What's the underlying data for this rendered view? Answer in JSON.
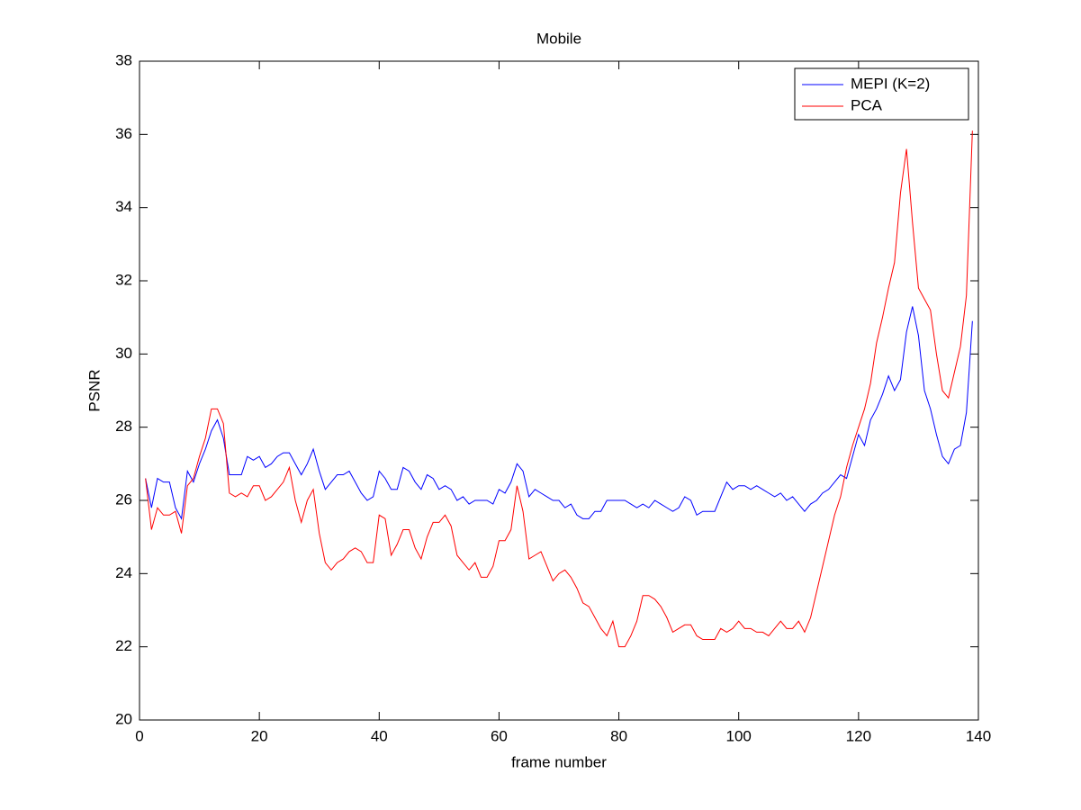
{
  "chart_data": {
    "type": "line",
    "title": "Mobile",
    "x_label": "frame number",
    "y_label": "PSNR",
    "x": [
      1,
      2,
      3,
      4,
      5,
      6,
      7,
      8,
      9,
      10,
      11,
      12,
      13,
      14,
      15,
      16,
      17,
      18,
      19,
      20,
      21,
      22,
      23,
      24,
      25,
      26,
      27,
      28,
      29,
      30,
      31,
      32,
      33,
      34,
      35,
      36,
      37,
      38,
      39,
      40,
      41,
      42,
      43,
      44,
      45,
      46,
      47,
      48,
      49,
      50,
      51,
      52,
      53,
      54,
      55,
      56,
      57,
      58,
      59,
      60,
      61,
      62,
      63,
      64,
      65,
      66,
      67,
      68,
      69,
      70,
      71,
      72,
      73,
      74,
      75,
      76,
      77,
      78,
      79,
      80,
      81,
      82,
      83,
      84,
      85,
      86,
      87,
      88,
      89,
      90,
      91,
      92,
      93,
      94,
      95,
      96,
      97,
      98,
      99,
      100,
      101,
      102,
      103,
      104,
      105,
      106,
      107,
      108,
      109,
      110,
      111,
      112,
      113,
      114,
      115,
      116,
      117,
      118,
      119,
      120,
      121,
      122,
      123,
      124,
      125,
      126,
      127,
      128,
      129,
      130,
      131,
      132,
      133,
      134,
      135,
      136,
      137,
      138,
      139
    ],
    "series": [
      {
        "name": "MEPI (K=2)",
        "color": "#0000ff",
        "values": [
          26.6,
          25.8,
          26.6,
          26.5,
          26.5,
          25.8,
          25.5,
          26.8,
          26.5,
          27.0,
          27.4,
          27.9,
          28.2,
          27.7,
          26.7,
          26.7,
          26.7,
          27.2,
          27.1,
          27.2,
          26.9,
          27.0,
          27.2,
          27.3,
          27.3,
          27.0,
          26.7,
          27.0,
          27.4,
          26.8,
          26.3,
          26.5,
          26.7,
          26.7,
          26.8,
          26.5,
          26.2,
          26.0,
          26.1,
          26.8,
          26.6,
          26.3,
          26.3,
          26.9,
          26.8,
          26.5,
          26.3,
          26.7,
          26.6,
          26.3,
          26.4,
          26.3,
          26.0,
          26.1,
          25.9,
          26.0,
          26.0,
          26.0,
          25.9,
          26.3,
          26.2,
          26.5,
          27.0,
          26.8,
          26.1,
          26.3,
          26.2,
          26.1,
          26.0,
          26.0,
          25.8,
          25.9,
          25.6,
          25.5,
          25.5,
          25.7,
          25.7,
          26.0,
          26.0,
          26.0,
          26.0,
          25.9,
          25.8,
          25.9,
          25.8,
          26.0,
          25.9,
          25.8,
          25.7,
          25.8,
          26.1,
          26.0,
          25.6,
          25.7,
          25.7,
          25.7,
          26.1,
          26.5,
          26.3,
          26.4,
          26.4,
          26.3,
          26.4,
          26.3,
          26.2,
          26.1,
          26.2,
          26.0,
          26.1,
          25.9,
          25.7,
          25.9,
          26.0,
          26.2,
          26.3,
          26.5,
          26.7,
          26.6,
          27.2,
          27.8,
          27.5,
          28.2,
          28.5,
          28.9,
          29.4,
          29.0,
          29.3,
          30.6,
          31.3,
          30.5,
          29.0,
          28.5,
          27.8,
          27.2,
          27.0,
          27.4,
          27.5,
          28.4,
          30.9
        ]
      },
      {
        "name": "PCA",
        "color": "#ff0000",
        "values": [
          26.6,
          25.2,
          25.8,
          25.6,
          25.6,
          25.7,
          25.1,
          26.4,
          26.6,
          27.2,
          27.7,
          28.5,
          28.5,
          28.1,
          26.2,
          26.1,
          26.2,
          26.1,
          26.4,
          26.4,
          26.0,
          26.1,
          26.3,
          26.5,
          26.9,
          26.0,
          25.4,
          26.0,
          26.3,
          25.1,
          24.3,
          24.1,
          24.3,
          24.4,
          24.6,
          24.7,
          24.6,
          24.3,
          24.3,
          25.6,
          25.5,
          24.5,
          24.8,
          25.2,
          25.2,
          24.7,
          24.4,
          25.0,
          25.4,
          25.4,
          25.6,
          25.3,
          24.5,
          24.3,
          24.1,
          24.3,
          23.9,
          23.9,
          24.2,
          24.9,
          24.9,
          25.2,
          26.4,
          25.7,
          24.4,
          24.5,
          24.6,
          24.2,
          23.8,
          24.0,
          24.1,
          23.9,
          23.6,
          23.2,
          23.1,
          22.8,
          22.5,
          22.3,
          22.7,
          22.0,
          22.0,
          22.3,
          22.7,
          23.4,
          23.4,
          23.3,
          23.1,
          22.8,
          22.4,
          22.5,
          22.6,
          22.6,
          22.3,
          22.2,
          22.2,
          22.2,
          22.5,
          22.4,
          22.5,
          22.7,
          22.5,
          22.5,
          22.4,
          22.4,
          22.3,
          22.5,
          22.7,
          22.5,
          22.5,
          22.7,
          22.4,
          22.8,
          23.5,
          24.2,
          24.9,
          25.6,
          26.1,
          26.9,
          27.5,
          28.0,
          28.5,
          29.2,
          30.3,
          31.0,
          31.8,
          32.5,
          34.4,
          35.6,
          33.6,
          31.8,
          31.5,
          31.2,
          30.0,
          29.0,
          28.8,
          29.5,
          30.2,
          31.6,
          36.1
        ]
      }
    ],
    "xlim": [
      0,
      140
    ],
    "xticks": [
      0,
      20,
      40,
      60,
      80,
      100,
      120,
      140
    ],
    "ylim": [
      20,
      38
    ],
    "yticks": [
      20,
      22,
      24,
      26,
      28,
      30,
      32,
      34,
      36,
      38
    ],
    "grid": false,
    "legend": "northeast"
  }
}
